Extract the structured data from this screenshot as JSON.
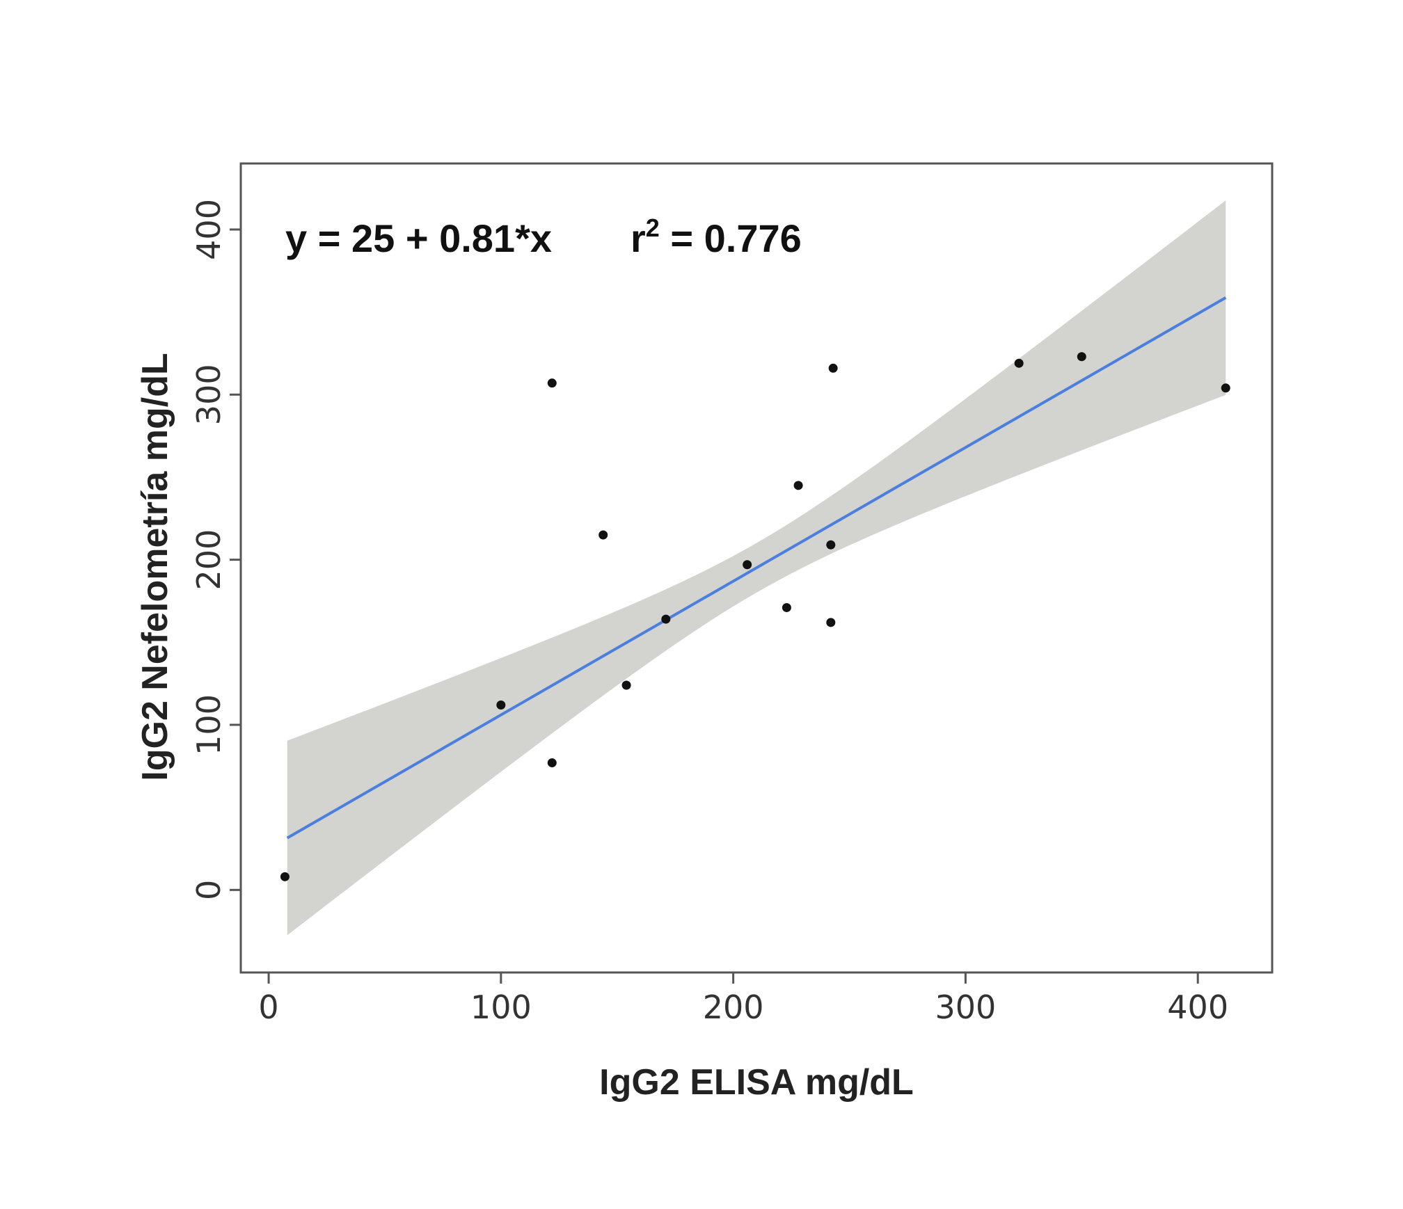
{
  "chart_data": {
    "type": "scatter",
    "title": "",
    "annotation": {
      "equation": "y = 25 + 0.81*x",
      "r2_label": "r",
      "r2_sup": "2",
      "r2_value": " = 0.776"
    },
    "xlabel": "IgG2 ELISA mg/dL",
    "ylabel": "IgG2 Nefelometría mg/dL",
    "xlim": [
      -12,
      432
    ],
    "ylim": [
      -50,
      440
    ],
    "xticks": [
      0,
      100,
      200,
      300,
      400
    ],
    "yticks": [
      0,
      100,
      200,
      300,
      400
    ],
    "grid": false,
    "points": [
      [
        7,
        8
      ],
      [
        100,
        112
      ],
      [
        122,
        77
      ],
      [
        122,
        307
      ],
      [
        144,
        215
      ],
      [
        154,
        124
      ],
      [
        171,
        164
      ],
      [
        206,
        197
      ],
      [
        223,
        171
      ],
      [
        228,
        245
      ],
      [
        242,
        162
      ],
      [
        242,
        209
      ],
      [
        243,
        316
      ],
      [
        323,
        319
      ],
      [
        350,
        323
      ],
      [
        412,
        304
      ]
    ],
    "fit": {
      "intercept": 25,
      "slope": 0.81,
      "x_range": [
        8,
        412
      ],
      "color": "#4a7fe0"
    },
    "confidence_band": {
      "center_x": 210,
      "min_halfwidth": 15,
      "slope_factor": 0.282,
      "color": "#d3d3d0"
    }
  }
}
